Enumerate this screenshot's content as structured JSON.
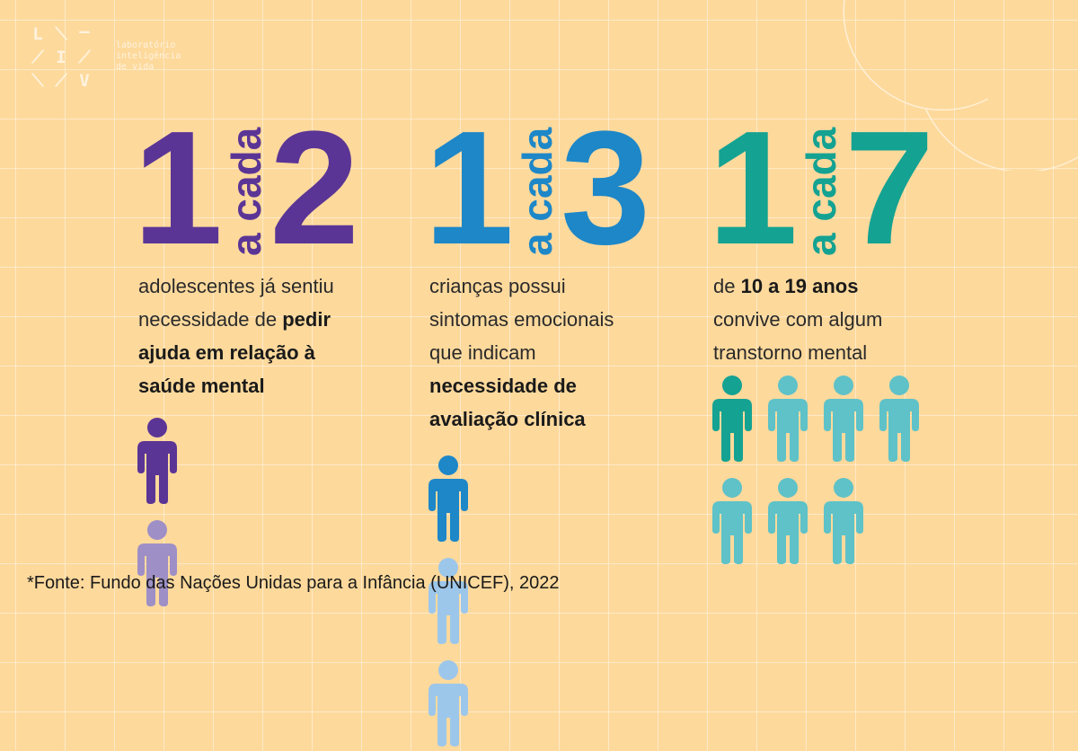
{
  "logo": {
    "letters": [
      "L",
      "I",
      "V"
    ],
    "text_lines": [
      "laboratório",
      "inteligência",
      "de vida"
    ]
  },
  "stats": [
    {
      "numerator": "1",
      "connector": "a cada",
      "denominator": "2",
      "color": "#5B3595",
      "light_color": "#9E8FC6",
      "description": [
        {
          "text": "adolescentes já sentiu necessidade de ",
          "bold": false
        },
        {
          "text": "pedir ajuda em relação à saúde mental",
          "bold": true
        }
      ],
      "people_total": 2,
      "people_highlighted": 1
    },
    {
      "numerator": "1",
      "connector": "a cada",
      "denominator": "3",
      "color": "#1D87C8",
      "light_color": "#9DC7EA",
      "description": [
        {
          "text": "crianças possui sintomas emocionais que indicam ",
          "bold": false
        },
        {
          "text": "necessidade de avaliação clínica",
          "bold": true
        }
      ],
      "people_total": 3,
      "people_highlighted": 1
    },
    {
      "numerator": "1",
      "connector": "a cada",
      "denominator": "7",
      "color": "#14A292",
      "light_color": "#5EC2C8",
      "description": [
        {
          "text": "de ",
          "bold": false
        },
        {
          "text": "10 a 19 anos",
          "bold": true
        },
        {
          "text": " convive com algum transtorno mental",
          "bold": false
        }
      ],
      "people_total": 7,
      "people_highlighted": 1
    }
  ],
  "source": "*Fonte: Fundo das Nações Unidas para a Infância (UNICEF), 2022"
}
